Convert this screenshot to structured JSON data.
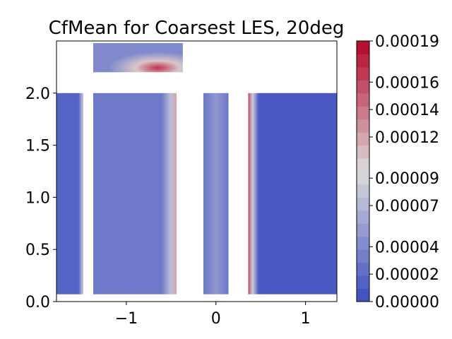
{
  "chart_data": {
    "type": "heatmap",
    "title": "CfMean for Coarsest LES, 20deg",
    "xlabel": "",
    "ylabel": "",
    "xlim": [
      -1.78,
      1.35
    ],
    "ylim": [
      0.0,
      2.5
    ],
    "x_ticks": [
      -1,
      0,
      1
    ],
    "x_tick_labels": [
      "−1",
      "0",
      "1"
    ],
    "y_ticks": [
      0.0,
      0.5,
      1.0,
      1.5,
      2.0
    ],
    "y_tick_labels": [
      "0.0",
      "0.5",
      "1.0",
      "1.5",
      "2.0"
    ],
    "colormap": "coolwarm",
    "color_range": [
      0.0,
      0.00019
    ],
    "colorbar_ticks": [
      0.0,
      2e-05,
      4e-05,
      7e-05,
      9e-05,
      0.00012,
      0.00014,
      0.00016,
      0.00019
    ],
    "colorbar_tick_labels": [
      "0.00000",
      "0.00002",
      "0.00004",
      "0.00007",
      "0.00009",
      "0.00012",
      "0.00014",
      "0.00016",
      "0.00019"
    ],
    "colorbar_levels": 20,
    "grid": false,
    "panels": [
      {
        "name": "panel-1",
        "x": [
          -1.78,
          -1.48
        ],
        "y": [
          0.07,
          2.0
        ],
        "base": 1.5e-05,
        "hot_edge": "right",
        "hot_value": 0.00011
      },
      {
        "name": "panel-2",
        "x": [
          -1.37,
          -0.44
        ],
        "y": [
          0.07,
          2.0
        ],
        "base": 3e-05,
        "hot_edge": "right",
        "hot_value": 0.00012
      },
      {
        "name": "panel-3",
        "x": [
          -0.14,
          0.14
        ],
        "y": [
          0.07,
          2.0
        ],
        "base": 2.8e-05,
        "hot_edge": "none",
        "hot_value": 5e-05
      },
      {
        "name": "panel-4",
        "x": [
          0.36,
          1.35
        ],
        "y": [
          0.07,
          2.0
        ],
        "base": 8e-06,
        "hot_edge": "left",
        "hot_value": 0.00016
      },
      {
        "name": "panel-top",
        "x": [
          -1.37,
          -0.37
        ],
        "y": [
          2.2,
          2.48
        ],
        "base": 4e-05,
        "hot_edge": "bottom-right",
        "hot_value": 0.00017
      }
    ],
    "colors": {
      "low": "#3b4cc0",
      "mid": "#dddddd",
      "high": "#b40426"
    }
  }
}
